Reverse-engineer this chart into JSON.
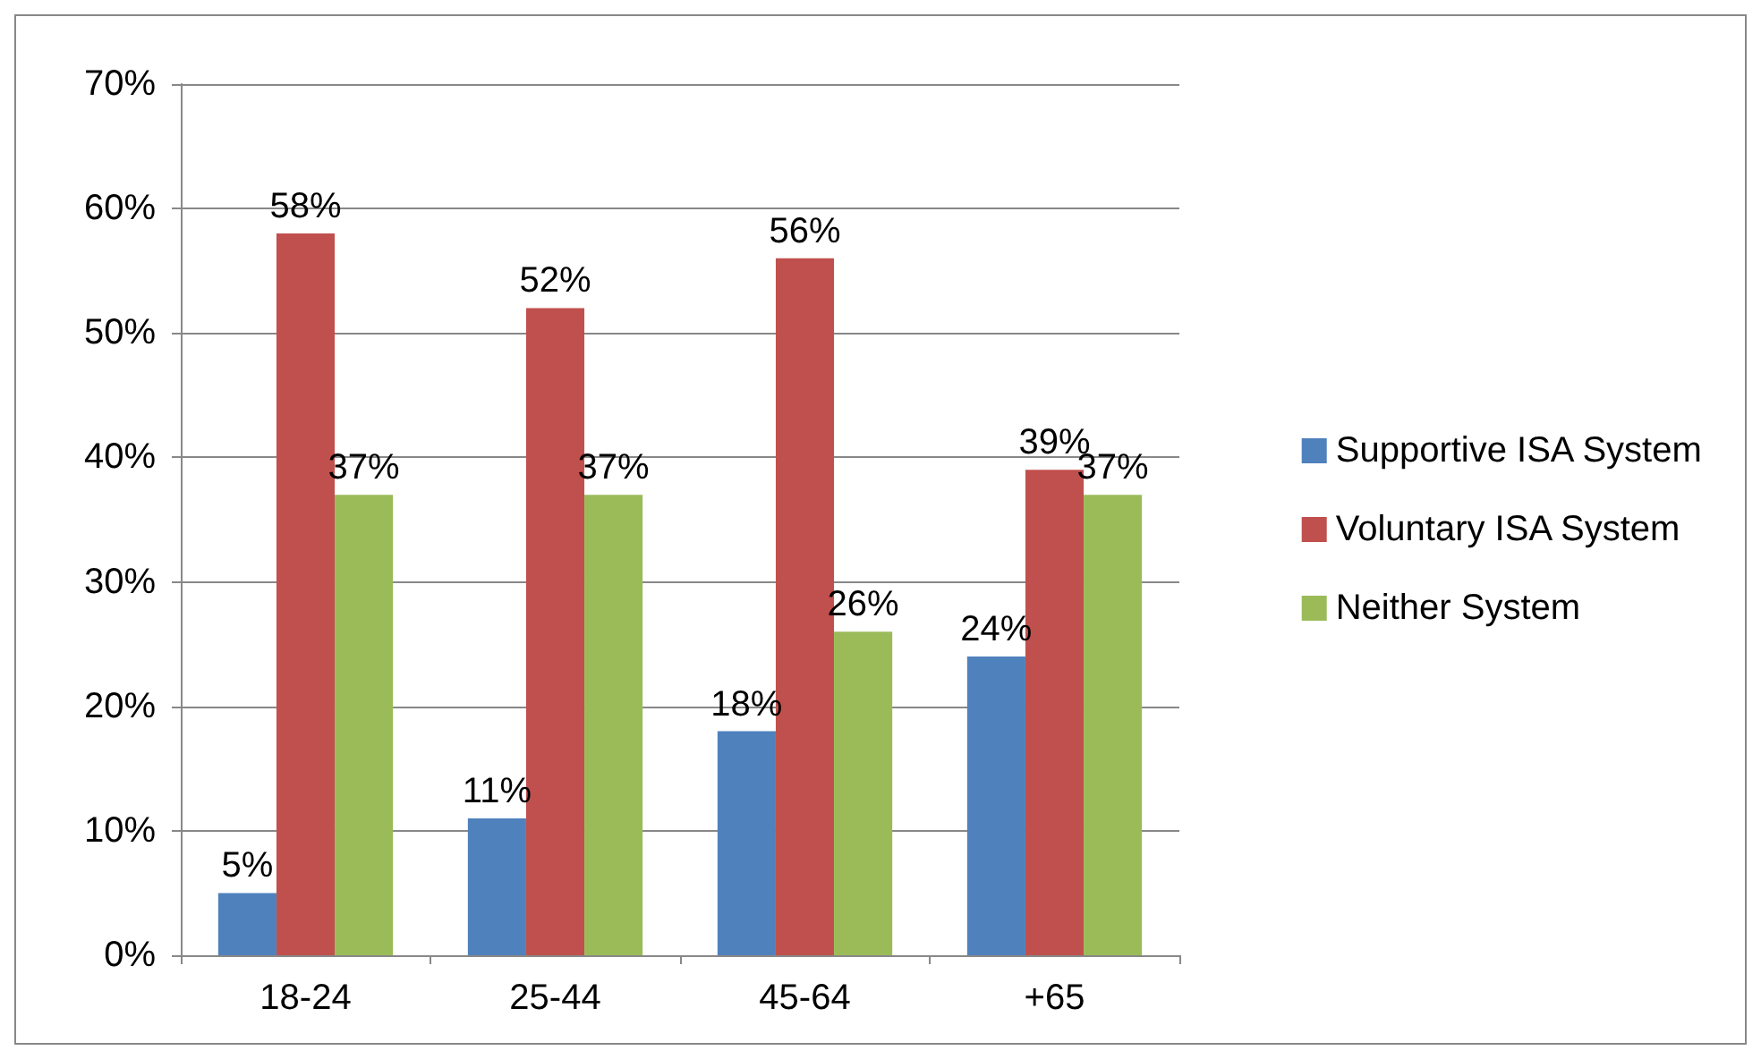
{
  "chart_data": {
    "type": "bar",
    "categories": [
      "18-24",
      "25-44",
      "45-64",
      "+65"
    ],
    "series": [
      {
        "name": "Supportive ISA System",
        "color": "#4f81bd",
        "values": [
          5,
          11,
          18,
          24
        ],
        "value_labels": [
          "5%",
          "11%",
          "18%",
          "24%"
        ]
      },
      {
        "name": "Voluntary ISA System",
        "color": "#c0504d",
        "values": [
          58,
          52,
          56,
          39
        ],
        "value_labels": [
          "58%",
          "52%",
          "56%",
          "39%"
        ]
      },
      {
        "name": "Neither System",
        "color": "#9bbb59",
        "values": [
          37,
          37,
          26,
          37
        ],
        "value_labels": [
          "37%",
          "37%",
          "26%",
          "37%"
        ]
      }
    ],
    "ylim": [
      0,
      70
    ],
    "yticks": [
      {
        "value": 0,
        "label": "0%"
      },
      {
        "value": 10,
        "label": "10%"
      },
      {
        "value": 20,
        "label": "20%"
      },
      {
        "value": 30,
        "label": "30%"
      },
      {
        "value": 40,
        "label": "40%"
      },
      {
        "value": 50,
        "label": "50%"
      },
      {
        "value": 60,
        "label": "60%"
      },
      {
        "value": 70,
        "label": "70%"
      }
    ],
    "grid": "y",
    "legend": "right"
  }
}
